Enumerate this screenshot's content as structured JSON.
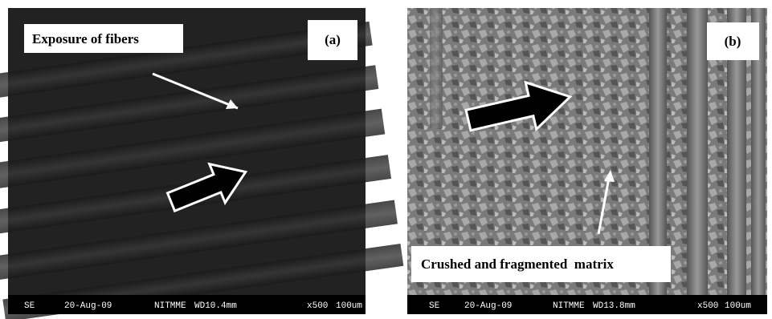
{
  "panels": [
    {
      "label": "(a)",
      "caption": "Exposure of fibers",
      "info": [
        "SE",
        "20-Aug-09",
        "NITMME",
        "WD10.4mm",
        "x500",
        "100um"
      ]
    },
    {
      "label": "(b)",
      "caption": "Crushed and fragmented  matrix",
      "info": [
        "SE",
        "20-Aug-09",
        "NITMME",
        "WD13.8mm",
        "x500",
        "100um"
      ]
    }
  ]
}
